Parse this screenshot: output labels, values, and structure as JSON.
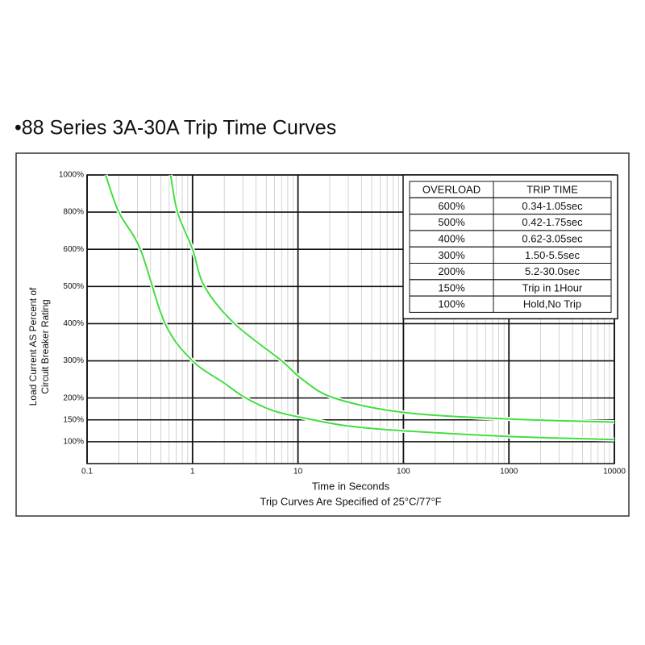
{
  "chart_data": {
    "type": "line",
    "title": "•88 Series 3A-30A Trip Time Curves",
    "xlabel": "Time in Seconds",
    "note": "Trip Curves Are Specified of 25°C/77°F",
    "ylabel": [
      "Load Current AS Percent of",
      "Circuit Breaker Rating"
    ],
    "xscale": "log",
    "xlim": [
      0.1,
      10000
    ],
    "xticks": [
      0.1,
      1,
      10,
      100,
      1000,
      10000
    ],
    "ylim": [
      50,
      1000
    ],
    "yticks": [
      {
        "value": 100,
        "label": "100%"
      },
      {
        "value": 150,
        "label": "150%"
      },
      {
        "value": 200,
        "label": "200%"
      },
      {
        "value": 300,
        "label": "300%"
      },
      {
        "value": 400,
        "label": "400%"
      },
      {
        "value": 500,
        "label": "500%"
      },
      {
        "value": 600,
        "label": "600%"
      },
      {
        "value": 800,
        "label": "800%"
      },
      {
        "value": 1000,
        "label": "1000%"
      }
    ],
    "grid": true,
    "series": [
      {
        "color": "#44dd44",
        "x": [
          0.15,
          0.2,
          0.32,
          0.55,
          1,
          2,
          3.2,
          6,
          14,
          30,
          100,
          1000,
          10000
        ],
        "values": [
          1000,
          800,
          600,
          400,
          300,
          240,
          200,
          170,
          150,
          136,
          125,
          112,
          105
        ]
      },
      {
        "color": "#44dd44",
        "x": [
          0.62,
          0.72,
          1,
          1.3,
          2.5,
          7,
          11,
          22,
          100,
          1000,
          10000
        ],
        "values": [
          1000,
          800,
          600,
          500,
          400,
          300,
          250,
          200,
          167,
          152,
          145
        ]
      }
    ],
    "table": {
      "header": [
        "OVERLOAD",
        "TRIP TIME"
      ],
      "rows": [
        [
          "600%",
          "0.34-1.05sec"
        ],
        [
          "500%",
          "0.42-1.75sec"
        ],
        [
          "400%",
          "0.62-3.05sec"
        ],
        [
          "300%",
          "1.50-5.5sec"
        ],
        [
          "200%",
          "5.2-30.0sec"
        ],
        [
          "150%",
          "Trip in 1Hour"
        ],
        [
          "100%",
          "Hold,No Trip"
        ]
      ]
    }
  }
}
